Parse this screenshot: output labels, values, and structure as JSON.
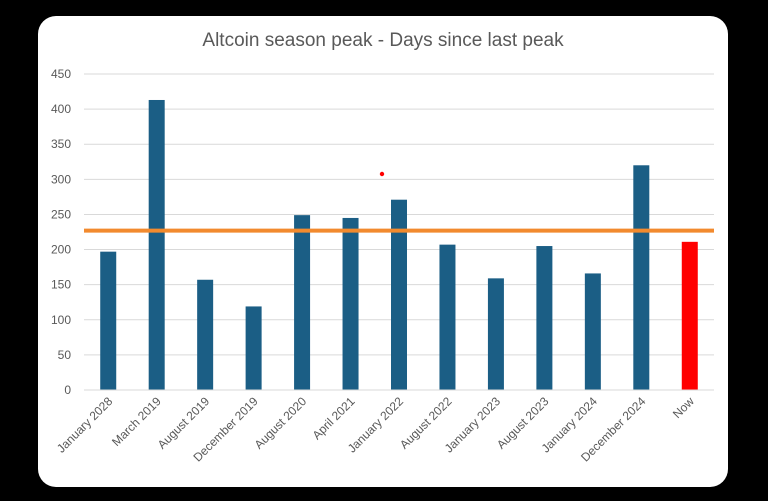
{
  "chart_data": {
    "type": "bar",
    "title": "Altcoin season peak - Days since last peak",
    "categories": [
      "January 2028",
      "March 2019",
      "August 2019",
      "December 2019",
      "August 2020",
      "April 2021",
      "January 2022",
      "August 2022",
      "January 2023",
      "August 2023",
      "January 2024",
      "December 2024",
      "Now"
    ],
    "values": [
      197,
      413,
      157,
      119,
      249,
      245,
      271,
      207,
      159,
      205,
      166,
      320,
      211
    ],
    "ylim": [
      0,
      450
    ],
    "yticks": [
      0,
      50,
      100,
      150,
      200,
      250,
      300,
      350,
      400,
      450
    ],
    "reference_line": 227,
    "grid": true,
    "legend": "none",
    "colors": {
      "bar": "#1b5e85",
      "highlight": "#ff0000",
      "reference_line": "#f28a2e",
      "grid": "#d9d9d9",
      "text": "#595959"
    },
    "highlight_category": "Now"
  }
}
